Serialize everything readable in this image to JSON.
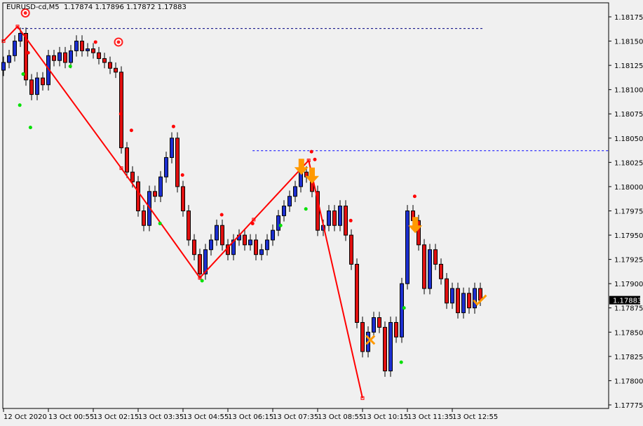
{
  "header": {
    "symbol": "EURUSD-cd,M5",
    "ohlc": "1.17874 1.17896 1.17872 1.17883"
  },
  "colors": {
    "background": "#f0f0f0",
    "bull": "#1c2fd0",
    "bear": "#e01010",
    "zigzag": "#ff0000",
    "fractal_high": "#ff0000",
    "fractal_low": "#00e000",
    "signal": "#ff9900",
    "hline_top": "#000080",
    "hline_mid": "#0000ff"
  },
  "chart_data": {
    "type": "candlestick",
    "symbol": "EURUSD-cd",
    "timeframe": "M5",
    "ylim": [
      1.17765,
      1.18185
    ],
    "y_ticks": [
      "1.18175",
      "1.18150",
      "1.18125",
      "1.18100",
      "1.18075",
      "1.18050",
      "1.18025",
      "1.18000",
      "1.17975",
      "1.17950",
      "1.17925",
      "1.17900",
      "1.17875",
      "1.17850",
      "1.17825",
      "1.17800",
      "1.17775"
    ],
    "x_tick_labels": [
      "12 Oct 2020",
      "13 Oct 00:55",
      "13 Oct 02:15",
      "13 Oct 03:35",
      "13 Oct 04:55",
      "13 Oct 06:15",
      "13 Oct 07:35",
      "13 Oct 08:55",
      "13 Oct 10:15",
      "13 Oct 11:35",
      "13 Oct 12:55"
    ],
    "first_open": 1.1812,
    "close": [
      1.18128,
      1.18135,
      1.1815,
      1.18158,
      1.1811,
      1.18095,
      1.18112,
      1.18105,
      1.18135,
      1.1813,
      1.18138,
      1.18128,
      1.1814,
      1.1815,
      1.1814,
      1.18142,
      1.18138,
      1.18132,
      1.18128,
      1.18122,
      1.18118,
      1.1804,
      1.18015,
      1.18005,
      1.17975,
      1.1796,
      1.17995,
      1.1799,
      1.1801,
      1.1803,
      1.1805,
      1.18,
      1.17975,
      1.17945,
      1.1793,
      1.1791,
      1.17935,
      1.17945,
      1.1796,
      1.1794,
      1.1793,
      1.17945,
      1.1795,
      1.1794,
      1.17945,
      1.1793,
      1.17935,
      1.17945,
      1.17955,
      1.1797,
      1.1798,
      1.1799,
      1.18,
      1.18015,
      1.1801,
      1.17995,
      1.17955,
      1.1796,
      1.17975,
      1.1796,
      1.1798,
      1.1795,
      1.1792,
      1.1786,
      1.1783,
      1.1785,
      1.17865,
      1.17855,
      1.1781,
      1.1786,
      1.17845,
      1.179,
      1.17975,
      1.17965,
      1.1794,
      1.17895,
      1.17935,
      1.1792,
      1.17905,
      1.1788,
      1.17895,
      1.1787,
      1.1789,
      1.17875,
      1.17895,
      1.17883
    ],
    "current_price": "1.17883",
    "zigzag": [
      [
        0,
        1.1815
      ],
      [
        2.5,
        1.18165
      ],
      [
        21,
        1.18019
      ],
      [
        35,
        1.17906
      ],
      [
        44.6,
        1.17966
      ],
      [
        54.4,
        1.18027
      ],
      [
        64,
        1.17782
      ]
    ],
    "fractal_highs": [
      [
        4.4,
        1.18138
      ],
      [
        16.4,
        1.18149
      ],
      [
        20.9,
        1.18075
      ],
      [
        22.8,
        1.18058
      ],
      [
        30.3,
        1.18062
      ],
      [
        31.9,
        1.18012
      ],
      [
        38.9,
        1.17971
      ],
      [
        44.4,
        1.17962
      ],
      [
        54.9,
        1.18036
      ],
      [
        55.5,
        1.18028
      ],
      [
        61.9,
        1.17965
      ],
      [
        73.3,
        1.1799
      ]
    ],
    "fractal_lows": [
      [
        2.9,
        1.18084
      ],
      [
        3.5,
        1.18116
      ],
      [
        4.8,
        1.18061
      ],
      [
        11.9,
        1.18124
      ],
      [
        27.9,
        1.17962
      ],
      [
        35.4,
        1.17903
      ],
      [
        49.4,
        1.1796
      ],
      [
        53.9,
        1.17977
      ],
      [
        71.4,
        1.17875
      ],
      [
        70.9,
        1.17819
      ]
    ],
    "targets": [
      [
        3.9,
        1.18179
      ],
      [
        20.5,
        1.18149
      ]
    ],
    "signal_down_arrows": [
      [
        53.1,
        1.1802
      ],
      [
        55,
        1.18011
      ],
      [
        73.4,
        1.1796
      ]
    ],
    "signal_cross": [
      [
        65.4,
        1.17842
      ]
    ],
    "signal_check": [
      [
        84.8,
        1.17883
      ]
    ],
    "hlines": [
      {
        "price": 1.18163,
        "from": 2.5,
        "to": 85.4,
        "style": "dashed",
        "color_key": "hline_top"
      },
      {
        "price": 1.18037,
        "from": 44.4,
        "to": 999,
        "style": "dashed",
        "color_key": "hline_mid"
      }
    ]
  }
}
